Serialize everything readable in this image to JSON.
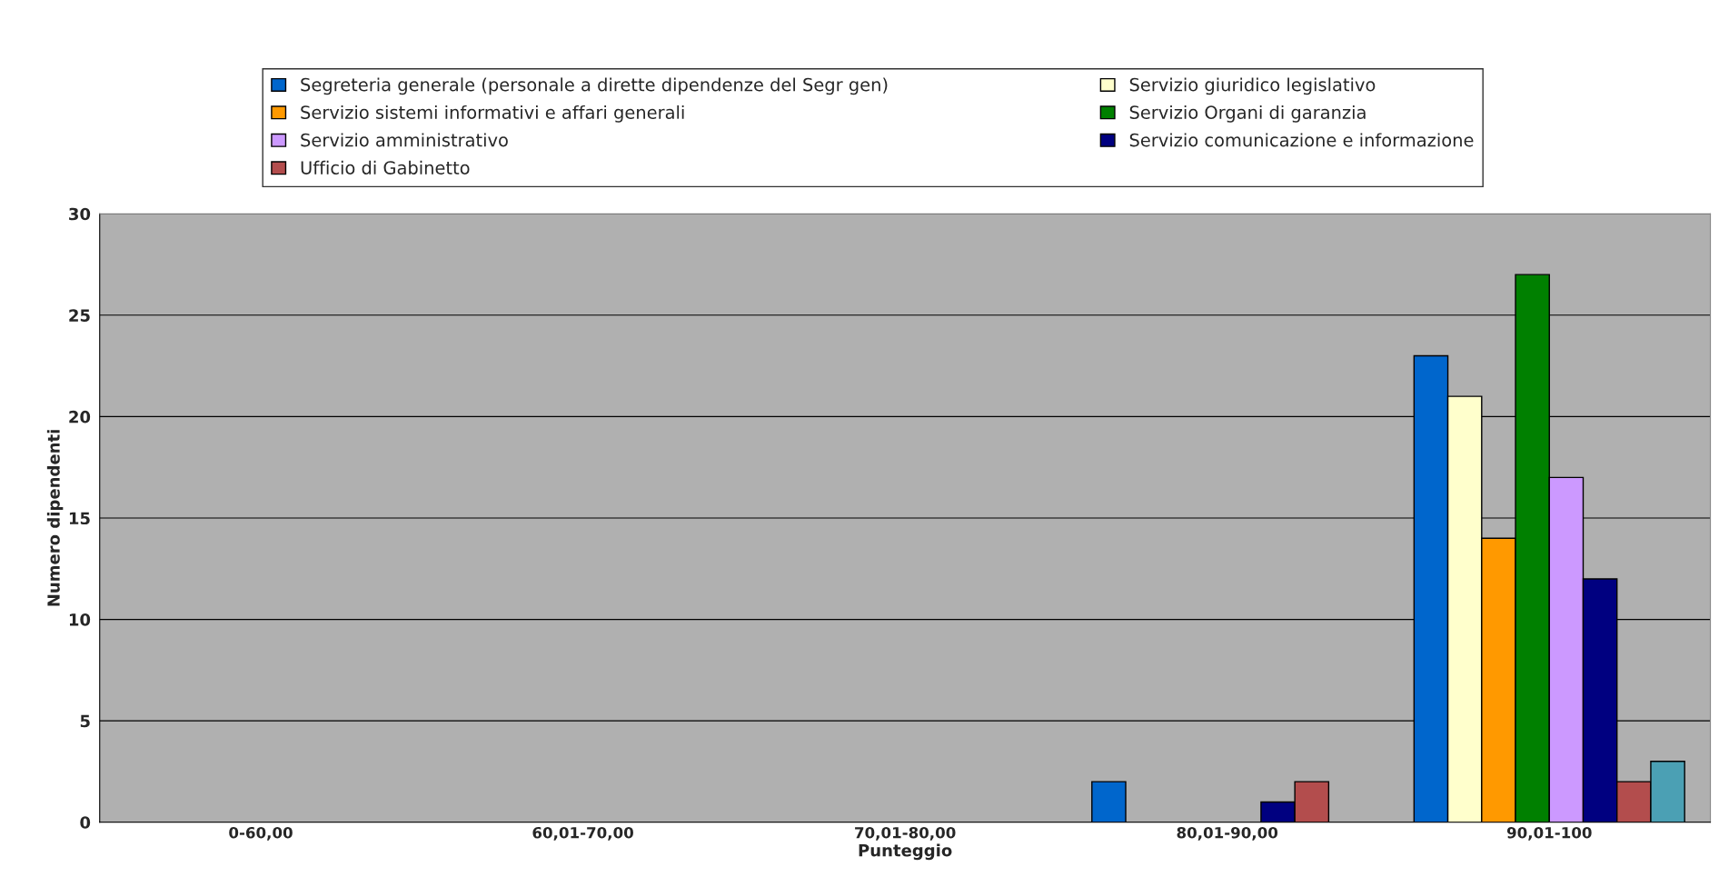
{
  "chart_data": {
    "type": "bar",
    "xlabel": "Punteggio",
    "ylabel": "Numero dipendenti",
    "categories": [
      "0-60,00",
      "60,01-70,00",
      "70,01-80,00",
      "80,01-90,00",
      "90,01-100"
    ],
    "series": [
      {
        "name": "Segreteria generale (personale a dirette dipendenze del Segr gen)",
        "color": "#0066cc",
        "values": [
          null,
          null,
          null,
          2,
          23
        ]
      },
      {
        "name": "Servizio giuridico legislativo",
        "color": "#ffffcc",
        "values": [
          null,
          null,
          null,
          null,
          21
        ]
      },
      {
        "name": "Servizio sistemi informativi e affari generali",
        "color": "#ff9900",
        "values": [
          null,
          null,
          null,
          null,
          14
        ]
      },
      {
        "name": "Servizio Organi di garanzia",
        "color": "#008000",
        "values": [
          null,
          null,
          null,
          null,
          27
        ]
      },
      {
        "name": "Servizio amministrativo",
        "color": "#cc99ff",
        "values": [
          null,
          null,
          null,
          null,
          17
        ]
      },
      {
        "name": "Servizio comunicazione e informazione",
        "color": "#000080",
        "values": [
          null,
          null,
          null,
          1,
          12
        ]
      },
      {
        "name": "Ufficio di Gabinetto",
        "color": "#b34d4d",
        "values": [
          null,
          null,
          null,
          2,
          2
        ]
      },
      {
        "color": "#4ba0b4",
        "values": [
          null,
          null,
          null,
          null,
          3
        ]
      }
    ],
    "ylim": [
      0,
      30
    ],
    "yticks": [
      0,
      5,
      10,
      15,
      20,
      25,
      30
    ],
    "grid": "y",
    "legend": "top"
  }
}
